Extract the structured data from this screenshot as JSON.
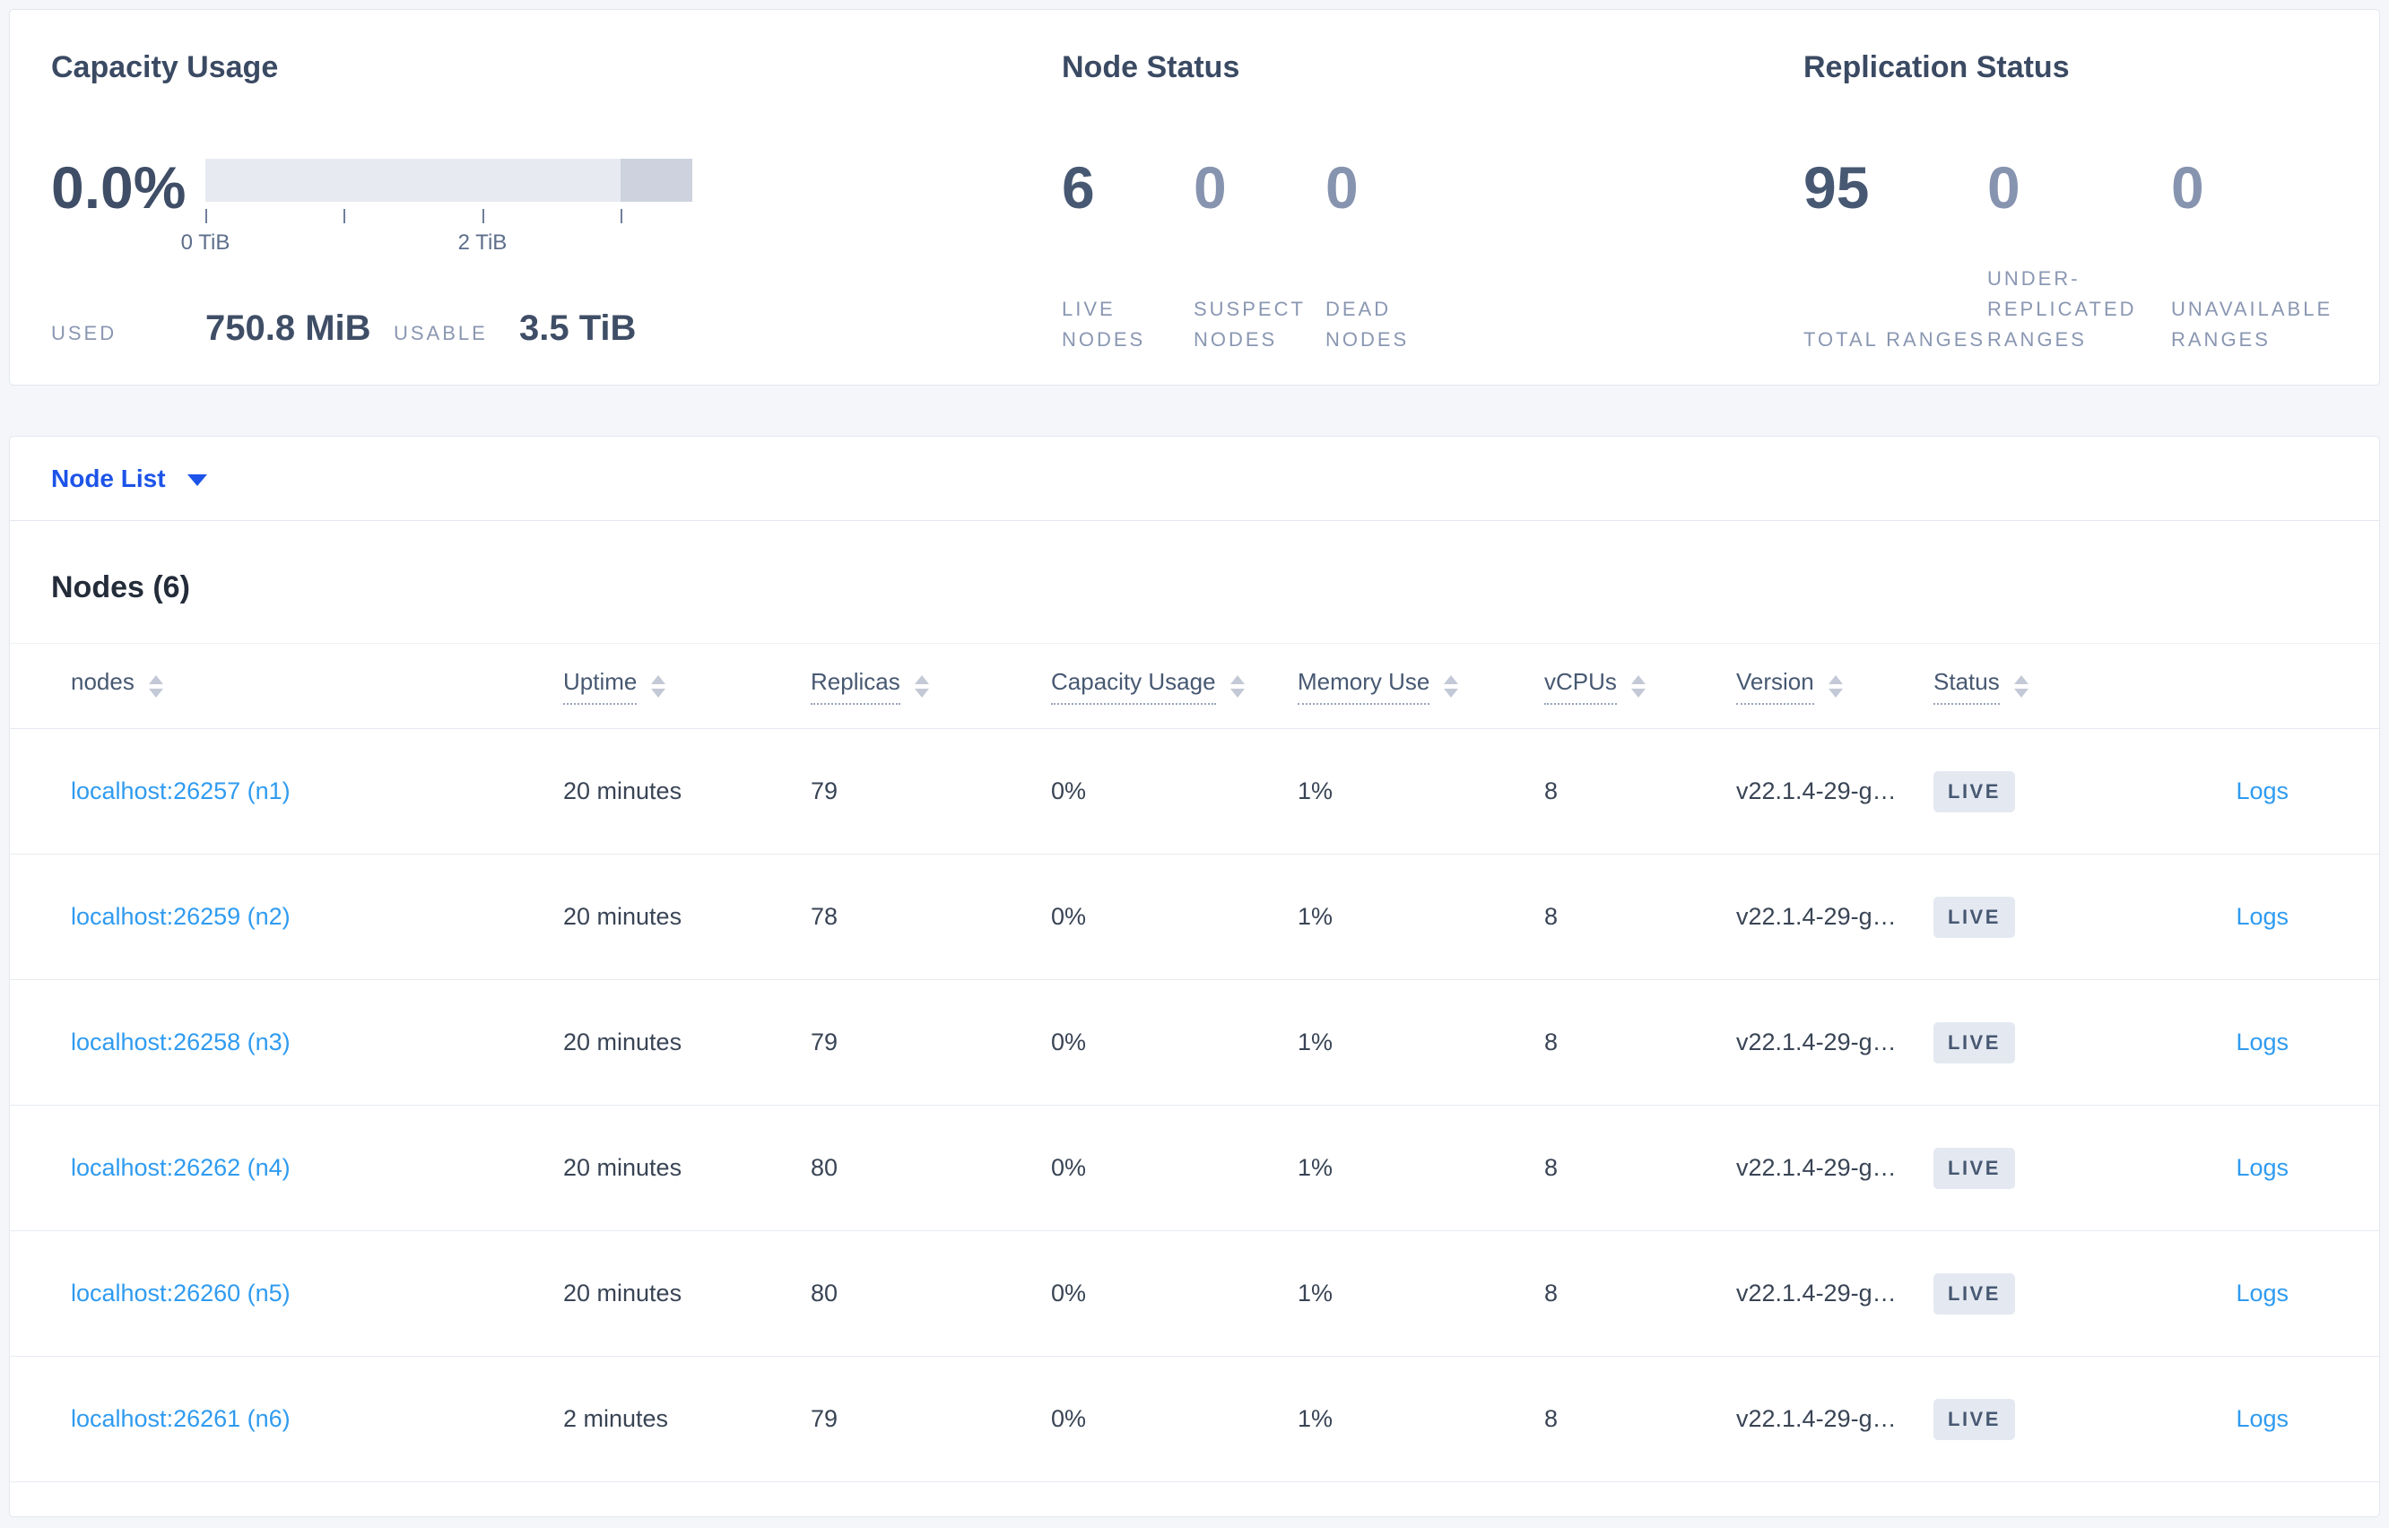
{
  "summary": {
    "capacity": {
      "title": "Capacity Usage",
      "percent": "0.0%",
      "bar": {
        "segments": [
          {
            "name": "usable-free",
            "fraction": 0.853,
            "color": "#e8eaf1"
          },
          {
            "name": "non-usable",
            "fraction": 0.147,
            "color": "#cdd2de"
          }
        ],
        "ticks": [
          {
            "x": 0,
            "label": "0 TiB"
          },
          {
            "x": 0.2845,
            "label": ""
          },
          {
            "x": 0.569,
            "label": "2 TiB"
          },
          {
            "x": 0.8535,
            "label": ""
          }
        ]
      },
      "used_label": "USED",
      "used_value": "750.8 MiB",
      "usable_label": "USABLE",
      "usable_value": "3.5 TiB"
    },
    "node_status": {
      "title": "Node Status",
      "stats": [
        {
          "name": "live-nodes",
          "value": "6",
          "label": "LIVE NODES",
          "emphasis": true
        },
        {
          "name": "suspect-nodes",
          "value": "0",
          "label": "SUSPECT NODES",
          "emphasis": false
        },
        {
          "name": "dead-nodes",
          "value": "0",
          "label": "DEAD NODES",
          "emphasis": false
        }
      ]
    },
    "replication_status": {
      "title": "Replication Status",
      "stats": [
        {
          "name": "total-ranges",
          "value": "95",
          "label": "TOTAL RANGES",
          "emphasis": true
        },
        {
          "name": "under-replicated-ranges",
          "value": "0",
          "label": "UNDER-REPLICATED RANGES",
          "emphasis": false
        },
        {
          "name": "unavailable-ranges",
          "value": "0",
          "label": "UNAVAILABLE RANGES",
          "emphasis": false
        }
      ]
    }
  },
  "node_list": {
    "dropdown_label": "Node List",
    "heading": "Nodes (6)",
    "columns": [
      {
        "key": "node",
        "label": "nodes",
        "dotted": false
      },
      {
        "key": "uptime",
        "label": "Uptime",
        "dotted": true
      },
      {
        "key": "replicas",
        "label": "Replicas",
        "dotted": true
      },
      {
        "key": "capacity",
        "label": "Capacity Usage",
        "dotted": true
      },
      {
        "key": "memory",
        "label": "Memory Use",
        "dotted": true
      },
      {
        "key": "vcpus",
        "label": "vCPUs",
        "dotted": true
      },
      {
        "key": "version",
        "label": "Version",
        "dotted": true
      },
      {
        "key": "status",
        "label": "Status",
        "dotted": true
      }
    ],
    "logs_label": "Logs",
    "rows": [
      {
        "node": "localhost:26257 (n1)",
        "uptime": "20 minutes",
        "replicas": "79",
        "capacity": "0%",
        "memory": "1%",
        "vcpus": "8",
        "version": "v22.1.4-29-g…",
        "status": "LIVE"
      },
      {
        "node": "localhost:26259 (n2)",
        "uptime": "20 minutes",
        "replicas": "78",
        "capacity": "0%",
        "memory": "1%",
        "vcpus": "8",
        "version": "v22.1.4-29-g…",
        "status": "LIVE"
      },
      {
        "node": "localhost:26258 (n3)",
        "uptime": "20 minutes",
        "replicas": "79",
        "capacity": "0%",
        "memory": "1%",
        "vcpus": "8",
        "version": "v22.1.4-29-g…",
        "status": "LIVE"
      },
      {
        "node": "localhost:26262 (n4)",
        "uptime": "20 minutes",
        "replicas": "80",
        "capacity": "0%",
        "memory": "1%",
        "vcpus": "8",
        "version": "v22.1.4-29-g…",
        "status": "LIVE"
      },
      {
        "node": "localhost:26260 (n5)",
        "uptime": "20 minutes",
        "replicas": "80",
        "capacity": "0%",
        "memory": "1%",
        "vcpus": "8",
        "version": "v22.1.4-29-g…",
        "status": "LIVE"
      },
      {
        "node": "localhost:26261 (n6)",
        "uptime": "2 minutes",
        "replicas": "79",
        "capacity": "0%",
        "memory": "1%",
        "vcpus": "8",
        "version": "v22.1.4-29-g…",
        "status": "LIVE"
      }
    ]
  }
}
